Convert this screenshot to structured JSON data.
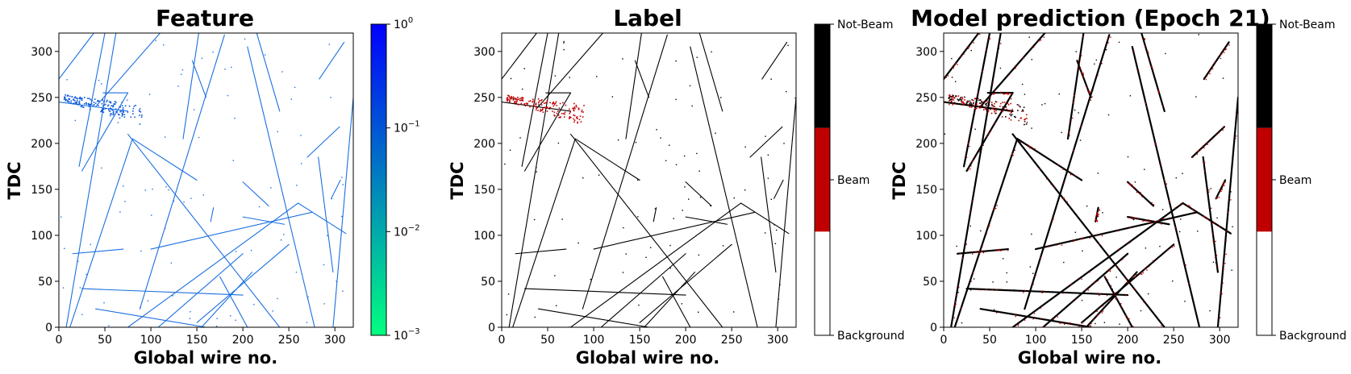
{
  "chart_data": [
    {
      "type": "heatmap",
      "title": "Feature",
      "xlabel": "Global wire no.",
      "ylabel": "TDC",
      "xlim": [
        0,
        320
      ],
      "ylim": [
        0,
        320
      ],
      "xticks": [
        "0",
        "50",
        "100",
        "150",
        "200",
        "250",
        "300"
      ],
      "yticks": [
        "0",
        "50",
        "100",
        "150",
        "200",
        "250",
        "300"
      ],
      "colorbar": {
        "scale": "log",
        "range": [
          0.001,
          1
        ],
        "ticks": [
          {
            "base": "10",
            "exp": "0"
          },
          {
            "base": "10",
            "exp": "−1"
          },
          {
            "base": "10",
            "exp": "−2"
          },
          {
            "base": "10",
            "exp": "−3"
          }
        ],
        "colors": [
          "#00ff80",
          "#0000ff"
        ]
      },
      "track_color": "#1a6fe0",
      "tracks": [
        [
          [
            8,
            0
          ],
          [
            62,
            320
          ]
        ],
        [
          [
            22,
            175
          ],
          [
            50,
            320
          ]
        ],
        [
          [
            40,
            240
          ],
          [
            110,
            320
          ]
        ],
        [
          [
            12,
            0
          ],
          [
            80,
            205
          ]
        ],
        [
          [
            80,
            205
          ],
          [
            150,
            160
          ]
        ],
        [
          [
            25,
            170
          ],
          [
            75,
            255
          ]
        ],
        [
          [
            88,
            20
          ],
          [
            180,
            318
          ]
        ],
        [
          [
            135,
            205
          ],
          [
            152,
            320
          ]
        ],
        [
          [
            48,
            255
          ],
          [
            75,
            255
          ]
        ],
        [
          [
            0,
            270
          ],
          [
            38,
            320
          ]
        ],
        [
          [
            75,
            210
          ],
          [
            240,
            0
          ]
        ],
        [
          [
            145,
            290
          ],
          [
            160,
            250
          ]
        ],
        [
          [
            200,
            158
          ],
          [
            228,
            132
          ]
        ],
        [
          [
            283,
            270
          ],
          [
            310,
            310
          ]
        ],
        [
          [
            270,
            185
          ],
          [
            305,
            218
          ]
        ],
        [
          [
            298,
            0
          ],
          [
            320,
            250
          ]
        ],
        [
          [
            282,
            185
          ],
          [
            298,
            60
          ]
        ],
        [
          [
            205,
            305
          ],
          [
            278,
            0
          ]
        ],
        [
          [
            240,
            235
          ],
          [
            215,
            320
          ]
        ],
        [
          [
            15,
            80
          ],
          [
            70,
            85
          ]
        ],
        [
          [
            100,
            85
          ],
          [
            275,
            125
          ]
        ],
        [
          [
            75,
            0
          ],
          [
            260,
            135
          ]
        ],
        [
          [
            260,
            135
          ],
          [
            312,
            102
          ]
        ],
        [
          [
            25,
            42
          ],
          [
            200,
            35
          ]
        ],
        [
          [
            108,
            0
          ],
          [
            200,
            80
          ]
        ],
        [
          [
            150,
            5
          ],
          [
            250,
            90
          ]
        ],
        [
          [
            155,
            0
          ],
          [
            210,
            60
          ]
        ],
        [
          [
            40,
            20
          ],
          [
            160,
            0
          ]
        ],
        [
          [
            200,
            120
          ],
          [
            245,
            112
          ]
        ],
        [
          [
            205,
            0
          ],
          [
            175,
            55
          ]
        ],
        [
          [
            0,
            245
          ],
          [
            75,
            235
          ]
        ],
        [
          [
            296,
            140
          ],
          [
            306,
            160
          ]
        ],
        [
          [
            168,
            130
          ],
          [
            165,
            115
          ]
        ]
      ]
    },
    {
      "type": "heatmap",
      "title": "Label",
      "xlabel": "Global wire no.",
      "ylabel": "TDC",
      "xlim": [
        0,
        320
      ],
      "ylim": [
        0,
        320
      ],
      "xticks": [
        "0",
        "50",
        "100",
        "150",
        "200",
        "250",
        "300"
      ],
      "yticks": [
        "0",
        "50",
        "100",
        "150",
        "200",
        "250",
        "300"
      ],
      "colorbar": {
        "type": "categorical",
        "categories": [
          "Background",
          "Beam",
          "Not-Beam"
        ],
        "colors": [
          "#ffffff",
          "#c00000",
          "#000000"
        ]
      },
      "track_color": "#000000",
      "beam_color": "#c00000",
      "beam_region": {
        "x": [
          5,
          90
        ],
        "y": [
          215,
          255
        ]
      }
    },
    {
      "type": "heatmap",
      "title": "Model prediction (Epoch 21)",
      "xlabel": "Global wire no.",
      "ylabel": "TDC",
      "xlim": [
        0,
        320
      ],
      "ylim": [
        0,
        320
      ],
      "xticks": [
        "0",
        "50",
        "100",
        "150",
        "200",
        "250",
        "300"
      ],
      "yticks": [
        "0",
        "50",
        "100",
        "150",
        "200",
        "250",
        "300"
      ],
      "colorbar": {
        "type": "categorical",
        "categories": [
          "Background",
          "Beam",
          "Not-Beam"
        ],
        "colors": [
          "#ffffff",
          "#c00000",
          "#000000"
        ]
      },
      "track_color": "#000000",
      "beam_color": "#c00000"
    }
  ]
}
